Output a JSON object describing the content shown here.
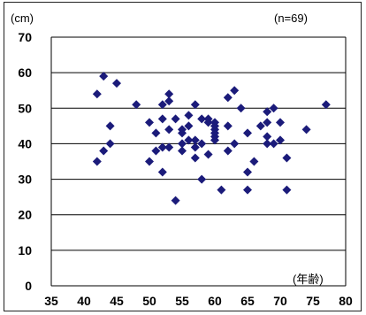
{
  "chart_data": {
    "type": "scatter",
    "unit_label": "(cm)",
    "count_label": "(n=69)",
    "xlabel": "(年齢)",
    "xlim": [
      35,
      80
    ],
    "ylim": [
      0,
      70
    ],
    "xticks": [
      35,
      40,
      45,
      50,
      55,
      60,
      65,
      70,
      75,
      80
    ],
    "yticks": [
      0,
      10,
      20,
      30,
      40,
      50,
      60,
      70
    ],
    "grid": true,
    "marker": "diamond",
    "color": "#1b1b7a",
    "points": [
      [
        42,
        54
      ],
      [
        42,
        35
      ],
      [
        43,
        59
      ],
      [
        43,
        38
      ],
      [
        44,
        45
      ],
      [
        44,
        40
      ],
      [
        45,
        57
      ],
      [
        48,
        51
      ],
      [
        50,
        46
      ],
      [
        50,
        35
      ],
      [
        51,
        38
      ],
      [
        51,
        43
      ],
      [
        52,
        51
      ],
      [
        52,
        47
      ],
      [
        52,
        39
      ],
      [
        52,
        32
      ],
      [
        53,
        52
      ],
      [
        53,
        54
      ],
      [
        53,
        44
      ],
      [
        53,
        39
      ],
      [
        54,
        24
      ],
      [
        54,
        47
      ],
      [
        55,
        43
      ],
      [
        55,
        40
      ],
      [
        55,
        38
      ],
      [
        55,
        44
      ],
      [
        56,
        48
      ],
      [
        56,
        41
      ],
      [
        56,
        45
      ],
      [
        57,
        51
      ],
      [
        57,
        41
      ],
      [
        57,
        36
      ],
      [
        57,
        39
      ],
      [
        58,
        47
      ],
      [
        58,
        40
      ],
      [
        58,
        30
      ],
      [
        59,
        46
      ],
      [
        59,
        47
      ],
      [
        59,
        37
      ],
      [
        60,
        46
      ],
      [
        60,
        45
      ],
      [
        60,
        44
      ],
      [
        60,
        43
      ],
      [
        60,
        42
      ],
      [
        60,
        41
      ],
      [
        61,
        27
      ],
      [
        62,
        53
      ],
      [
        62,
        38
      ],
      [
        62,
        45
      ],
      [
        63,
        55
      ],
      [
        63,
        40
      ],
      [
        64,
        50
      ],
      [
        65,
        43
      ],
      [
        65,
        27
      ],
      [
        65,
        32
      ],
      [
        66,
        35
      ],
      [
        67,
        45
      ],
      [
        68,
        49
      ],
      [
        68,
        46
      ],
      [
        68,
        42
      ],
      [
        68,
        40
      ],
      [
        69,
        50
      ],
      [
        69,
        40
      ],
      [
        70,
        41
      ],
      [
        70,
        46
      ],
      [
        71,
        27
      ],
      [
        71,
        36
      ],
      [
        74,
        44
      ],
      [
        77,
        51
      ]
    ]
  }
}
